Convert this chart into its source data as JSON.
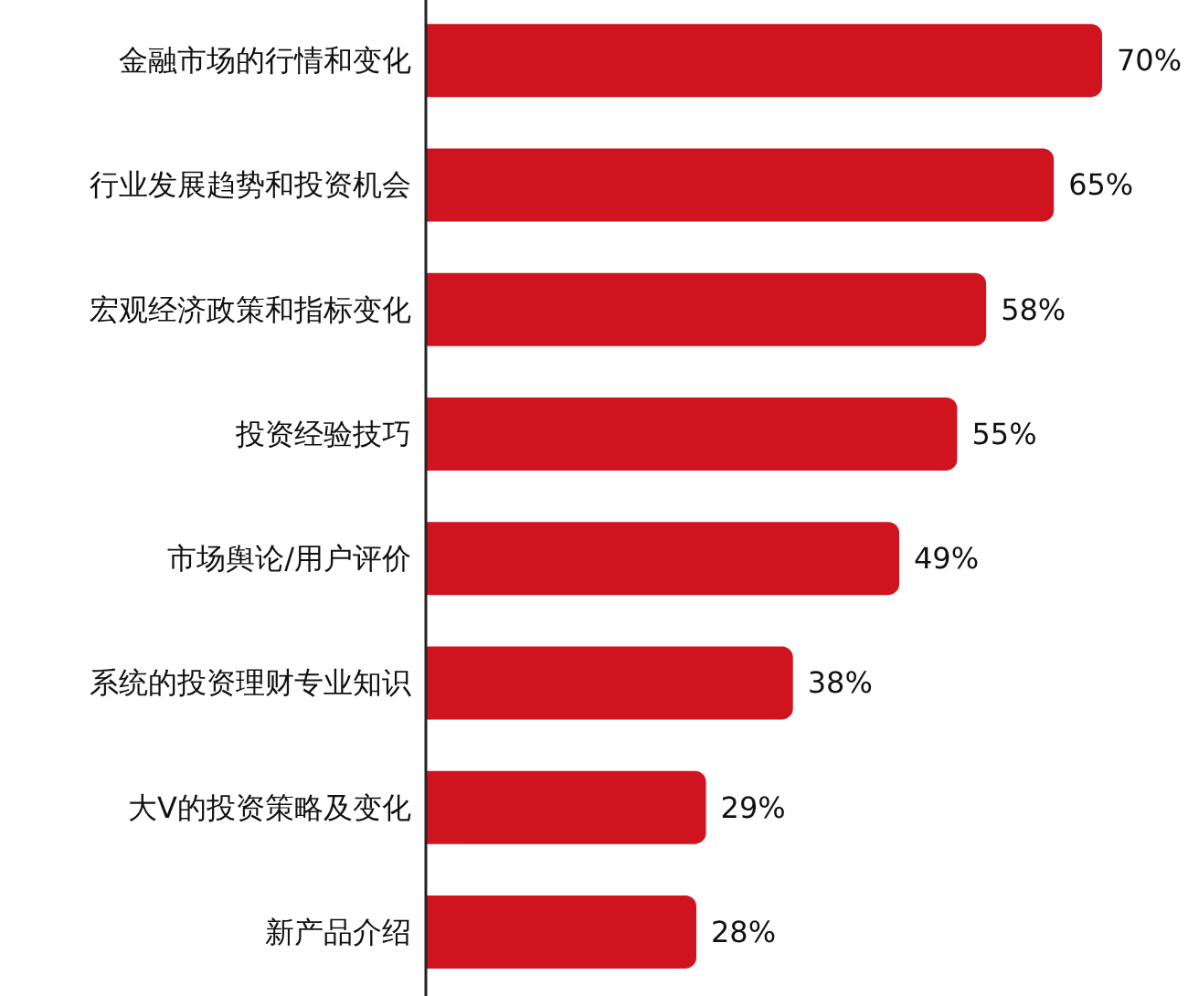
{
  "chart_data": {
    "type": "bar",
    "orientation": "horizontal",
    "color": "#d0141f",
    "categories": [
      "金融市场的行情和变化",
      "行业发展趋势和投资机会",
      "宏观经济政策和指标变化",
      "投资经验技巧",
      "市场舆论/用户评价",
      "系统的投资理财专业知识",
      "大V的投资策略及变化",
      "新产品介绍"
    ],
    "values": [
      70,
      65,
      58,
      55,
      49,
      38,
      29,
      28
    ],
    "value_labels": [
      "70%",
      "65%",
      "58%",
      "55%",
      "49%",
      "38%",
      "29%",
      "28%"
    ]
  }
}
